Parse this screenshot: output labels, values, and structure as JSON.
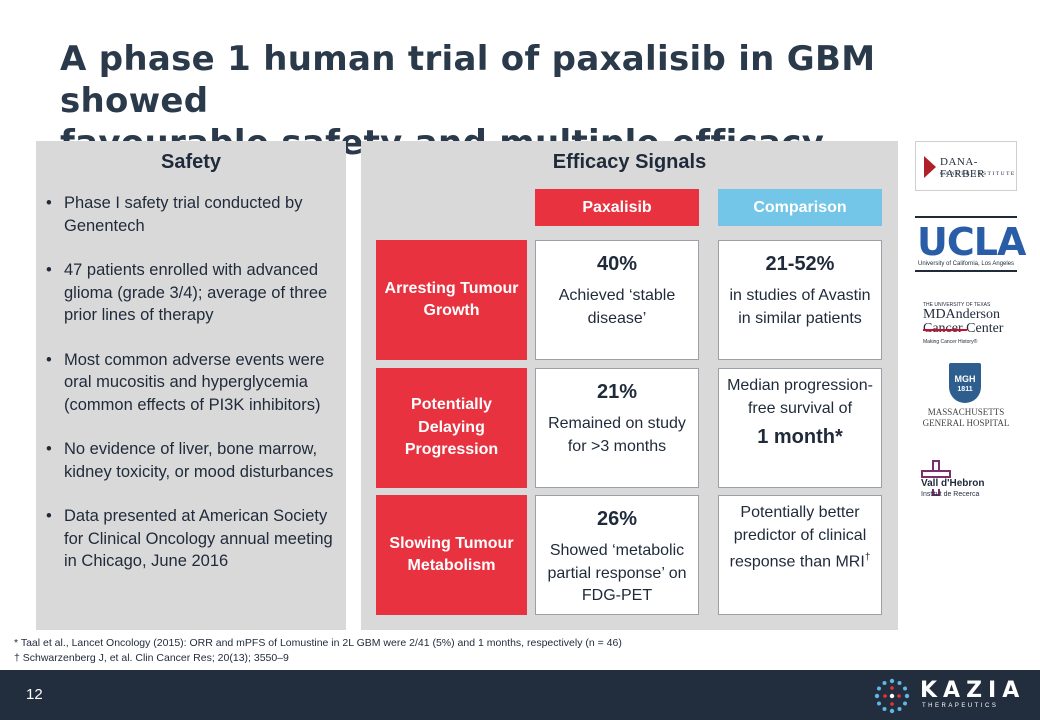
{
  "title": {
    "line1": "A phase 1 human trial of paxalisib in GBM showed",
    "line2": "favourable safety and multiple efficacy signals"
  },
  "safety": {
    "heading": "Safety",
    "bullets": [
      "Phase I safety trial conducted by Genentech",
      "47 patients enrolled with advanced glioma (grade 3/4); average of three prior lines of therapy",
      "Most common adverse events were oral mucositis and hyperglycemia (common effects of PI3K inhibitors)",
      "No evidence of liver, bone marrow, kidney toxicity, or mood disturbances",
      "Data presented at American Society for Clinical Oncology annual meeting in Chicago, June 2016"
    ]
  },
  "efficacy": {
    "heading": "Efficacy Signals",
    "col_paxalisib": "Paxalisib",
    "col_comparison": "Comparison",
    "rows": [
      {
        "label": "Arresting Tumour Growth",
        "pax_value": "40%",
        "pax_text": "Achieved ‘stable disease’",
        "comp_value": "21-52%",
        "comp_text": "in studies of Avastin in similar patients"
      },
      {
        "label": "Potentially Delaying Progression",
        "pax_value": "21%",
        "pax_text": "Remained on study for >3 months",
        "comp_text": "Median progression-free survival of",
        "comp_value": "1 month*"
      },
      {
        "label": "Slowing Tumour Metabolism",
        "pax_value": "26%",
        "pax_text": "Showed ‘metabolic partial response’ on FDG-PET",
        "comp_text": "Potentially better predictor of clinical response than MRI",
        "comp_sup": "†"
      }
    ]
  },
  "logos": {
    "dana_farber": "DANA-FARBER",
    "dana_farber_sub": "CANCER INSTITUTE",
    "ucla": "UCLA",
    "ucla_sub": "University of California, Los Angeles",
    "mda_top": "THE UNIVERSITY OF TEXAS",
    "mda_name1": "MDAnderson",
    "mda_name2": "Cancer Center",
    "mda_tag": "Making Cancer History®",
    "mgh_shield": "MGH",
    "mgh_year": "1811",
    "mgh_name1": "MASSACHUSETTS",
    "mgh_name2": "GENERAL HOSPITAL",
    "vh_name": "Vall d'Hebron",
    "vh_sub": "Institut de Recerca"
  },
  "footnotes": {
    "note1": "* Taal et al., Lancet Oncology (2015): ORR and mPFS of Lomustine in 2L GBM were 2/41 (5%) and 1 months, respectively (n = 46)",
    "note2": "†  Schwarzenberg J, et al. Clin Cancer Res; 20(13); 3550–9"
  },
  "footer": {
    "page_number": "12",
    "brand": "KAZIA",
    "brand_sub": "THERAPEUTICS"
  },
  "colors": {
    "accent_red": "#e8323f",
    "accent_blue": "#73c6e8",
    "footer_bg": "#222e3e",
    "panel_bg": "#d9d9d9"
  }
}
